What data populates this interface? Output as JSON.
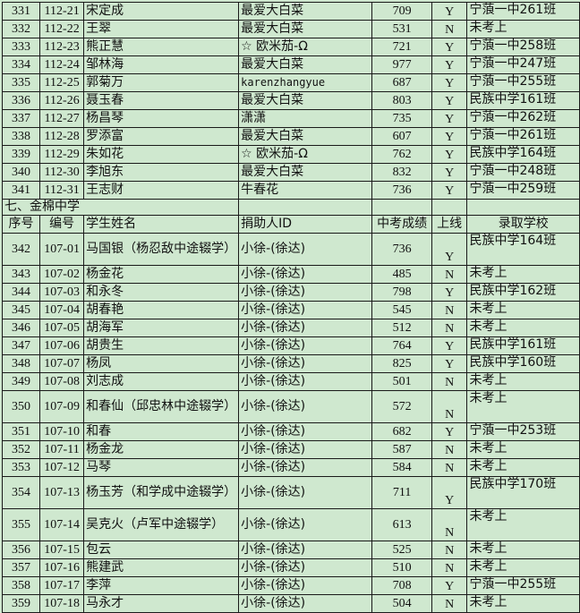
{
  "section_title": "七、金棉中学",
  "headers": [
    "序号",
    "编号",
    "学生姓名",
    "捐助人ID",
    "中考成绩",
    "上线",
    "录取学校"
  ],
  "rows_before": [
    {
      "no": "331",
      "id": "112-21",
      "name": "宋定成",
      "donor": "最爱大白菜",
      "score": "709",
      "pass": "Y",
      "school": "宁蒗一中261班"
    },
    {
      "no": "332",
      "id": "112-22",
      "name": "王翠",
      "donor": "最爱大白菜",
      "score": "531",
      "pass": "N",
      "school": "未考上"
    },
    {
      "no": "333",
      "id": "112-23",
      "name": "熊正慧",
      "donor": "☆ 欧米茄-Ω",
      "score": "721",
      "pass": "Y",
      "school": "宁蒗一中258班"
    },
    {
      "no": "334",
      "id": "112-24",
      "name": "邹林海",
      "donor": "最爱大白菜",
      "score": "977",
      "pass": "Y",
      "school": "宁蒗一中247班"
    },
    {
      "no": "335",
      "id": "112-25",
      "name": "郭菊万",
      "donor": "karenzhangyue",
      "score": "687",
      "pass": "Y",
      "school": "宁蒗一中255班"
    },
    {
      "no": "336",
      "id": "112-26",
      "name": "聂玉春",
      "donor": "最爱大白菜",
      "score": "803",
      "pass": "Y",
      "school": "民族中学161班"
    },
    {
      "no": "337",
      "id": "112-27",
      "name": "杨昌琴",
      "donor": "潇潇",
      "score": "735",
      "pass": "Y",
      "school": "宁蒗一中262班"
    },
    {
      "no": "338",
      "id": "112-28",
      "name": "罗添富",
      "donor": "最爱大白菜",
      "score": "607",
      "pass": "Y",
      "school": "宁蒗一中261班"
    },
    {
      "no": "339",
      "id": "112-29",
      "name": "朱如花",
      "donor": "☆ 欧米茄-Ω",
      "score": "762",
      "pass": "Y",
      "school": "民族中学164班"
    },
    {
      "no": "340",
      "id": "112-30",
      "name": "李旭东",
      "donor": "最爱大白菜",
      "score": "832",
      "pass": "Y",
      "school": "宁蒗一中248班"
    },
    {
      "no": "341",
      "id": "112-31",
      "name": "王志财",
      "donor": "牛春花",
      "score": "736",
      "pass": "Y",
      "school": "宁蒗一中259班"
    }
  ],
  "rows_after": [
    {
      "no": "342",
      "id": "107-01",
      "name": "马国银（杨忍敌中途辍学）",
      "donor": "小徐-(徐达)",
      "score": "736",
      "pass": "Y",
      "school": "民族中学164班",
      "tall": true
    },
    {
      "no": "343",
      "id": "107-02",
      "name": "杨金花",
      "donor": "小徐-(徐达)",
      "score": "485",
      "pass": "N",
      "school": "未考上"
    },
    {
      "no": "344",
      "id": "107-03",
      "name": "和永冬",
      "donor": "小徐-(徐达)",
      "score": "798",
      "pass": "Y",
      "school": "民族中学162班"
    },
    {
      "no": "345",
      "id": "107-04",
      "name": "胡春艳",
      "donor": "小徐-(徐达)",
      "score": "545",
      "pass": "N",
      "school": "未考上"
    },
    {
      "no": "346",
      "id": "107-05",
      "name": "胡海军",
      "donor": "小徐-(徐达)",
      "score": "512",
      "pass": "N",
      "school": "未考上"
    },
    {
      "no": "347",
      "id": "107-06",
      "name": "胡贵生",
      "donor": "小徐-(徐达)",
      "score": "764",
      "pass": "Y",
      "school": "民族中学161班"
    },
    {
      "no": "348",
      "id": "107-07",
      "name": "杨凤",
      "donor": "小徐-(徐达)",
      "score": "825",
      "pass": "Y",
      "school": "民族中学160班"
    },
    {
      "no": "349",
      "id": "107-08",
      "name": "刘志成",
      "donor": "小徐-(徐达)",
      "score": "501",
      "pass": "N",
      "school": "未考上"
    },
    {
      "no": "350",
      "id": "107-09",
      "name": "和春仙（邱忠林中途辍学）",
      "donor": "小徐-(徐达)",
      "score": "572",
      "pass": "N",
      "school": "未考上",
      "tall": true
    },
    {
      "no": "351",
      "id": "107-10",
      "name": "和春",
      "donor": "小徐-(徐达)",
      "score": "682",
      "pass": "Y",
      "school": "宁蒗一中253班"
    },
    {
      "no": "352",
      "id": "107-11",
      "name": "杨金龙",
      "donor": "小徐-(徐达)",
      "score": "587",
      "pass": "N",
      "school": "未考上"
    },
    {
      "no": "353",
      "id": "107-12",
      "name": "马琴",
      "donor": "小徐-(徐达)",
      "score": "584",
      "pass": "N",
      "school": "未考上"
    },
    {
      "no": "354",
      "id": "107-13",
      "name": "杨玉芳（和学成中途辍学）",
      "donor": "小徐-(徐达)",
      "score": "711",
      "pass": "Y",
      "school": "民族中学170班",
      "tall": true
    },
    {
      "no": "355",
      "id": "107-14",
      "name": "吴克火（卢军中途辍学）",
      "donor": "小徐-(徐达)",
      "score": "613",
      "pass": "N",
      "school": "未考上",
      "tall": true
    },
    {
      "no": "356",
      "id": "107-15",
      "name": "包云",
      "donor": "小徐-(徐达)",
      "score": "525",
      "pass": "N",
      "school": "未考上"
    },
    {
      "no": "357",
      "id": "107-16",
      "name": "熊建武",
      "donor": "小徐-(徐达)",
      "score": "510",
      "pass": "N",
      "school": "未考上"
    },
    {
      "no": "358",
      "id": "107-17",
      "name": "李萍",
      "donor": "小徐-(徐达)",
      "score": "708",
      "pass": "Y",
      "school": "宁蒗一中255班"
    },
    {
      "no": "359",
      "id": "107-18",
      "name": "马永才",
      "donor": "小徐-(徐达)",
      "score": "504",
      "pass": "N",
      "school": "未考上"
    }
  ]
}
